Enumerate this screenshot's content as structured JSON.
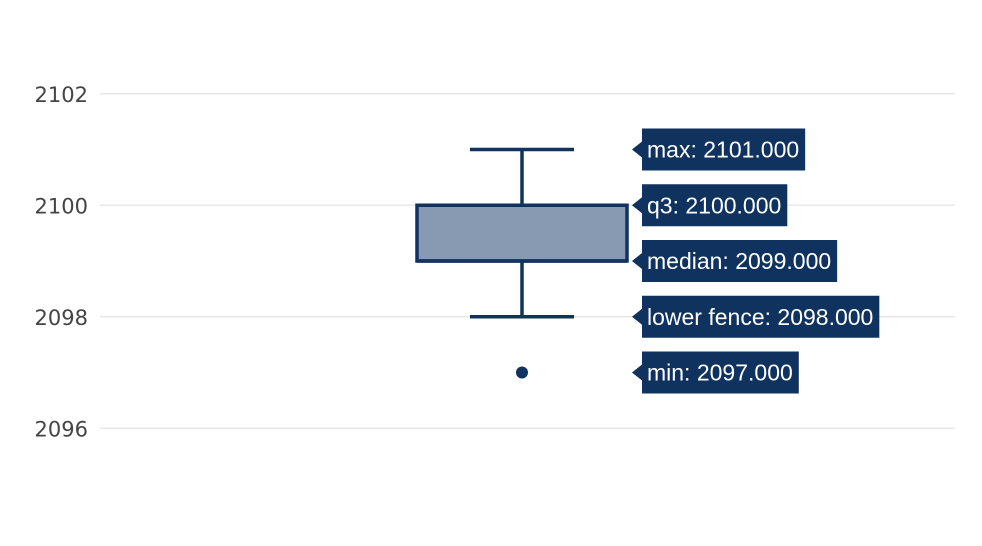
{
  "chart_data": {
    "type": "box",
    "ylim": [
      2095,
      2103
    ],
    "y_ticks": [
      2096,
      2098,
      2100,
      2102
    ],
    "grid": true,
    "series": [
      {
        "min": 2097,
        "lower_fence": 2098,
        "q1": 2099,
        "median": 2099,
        "q3": 2100,
        "max": 2101,
        "outliers": [
          2097
        ]
      }
    ],
    "hover_labels": [
      {
        "text": "max: 2101.000",
        "value": 2101
      },
      {
        "text": "q3: 2100.000",
        "value": 2100
      },
      {
        "text": "median: 2099.000",
        "value": 2099
      },
      {
        "text": "lower fence: 2098.000",
        "value": 2098
      },
      {
        "text": "min: 2097.000",
        "value": 2097
      }
    ],
    "colors": {
      "box_fill": "#8899b2",
      "box_line": "#10325f",
      "tooltip_bg": "#10325f",
      "grid": "#e8e8e8",
      "tick_text": "#444444"
    }
  }
}
